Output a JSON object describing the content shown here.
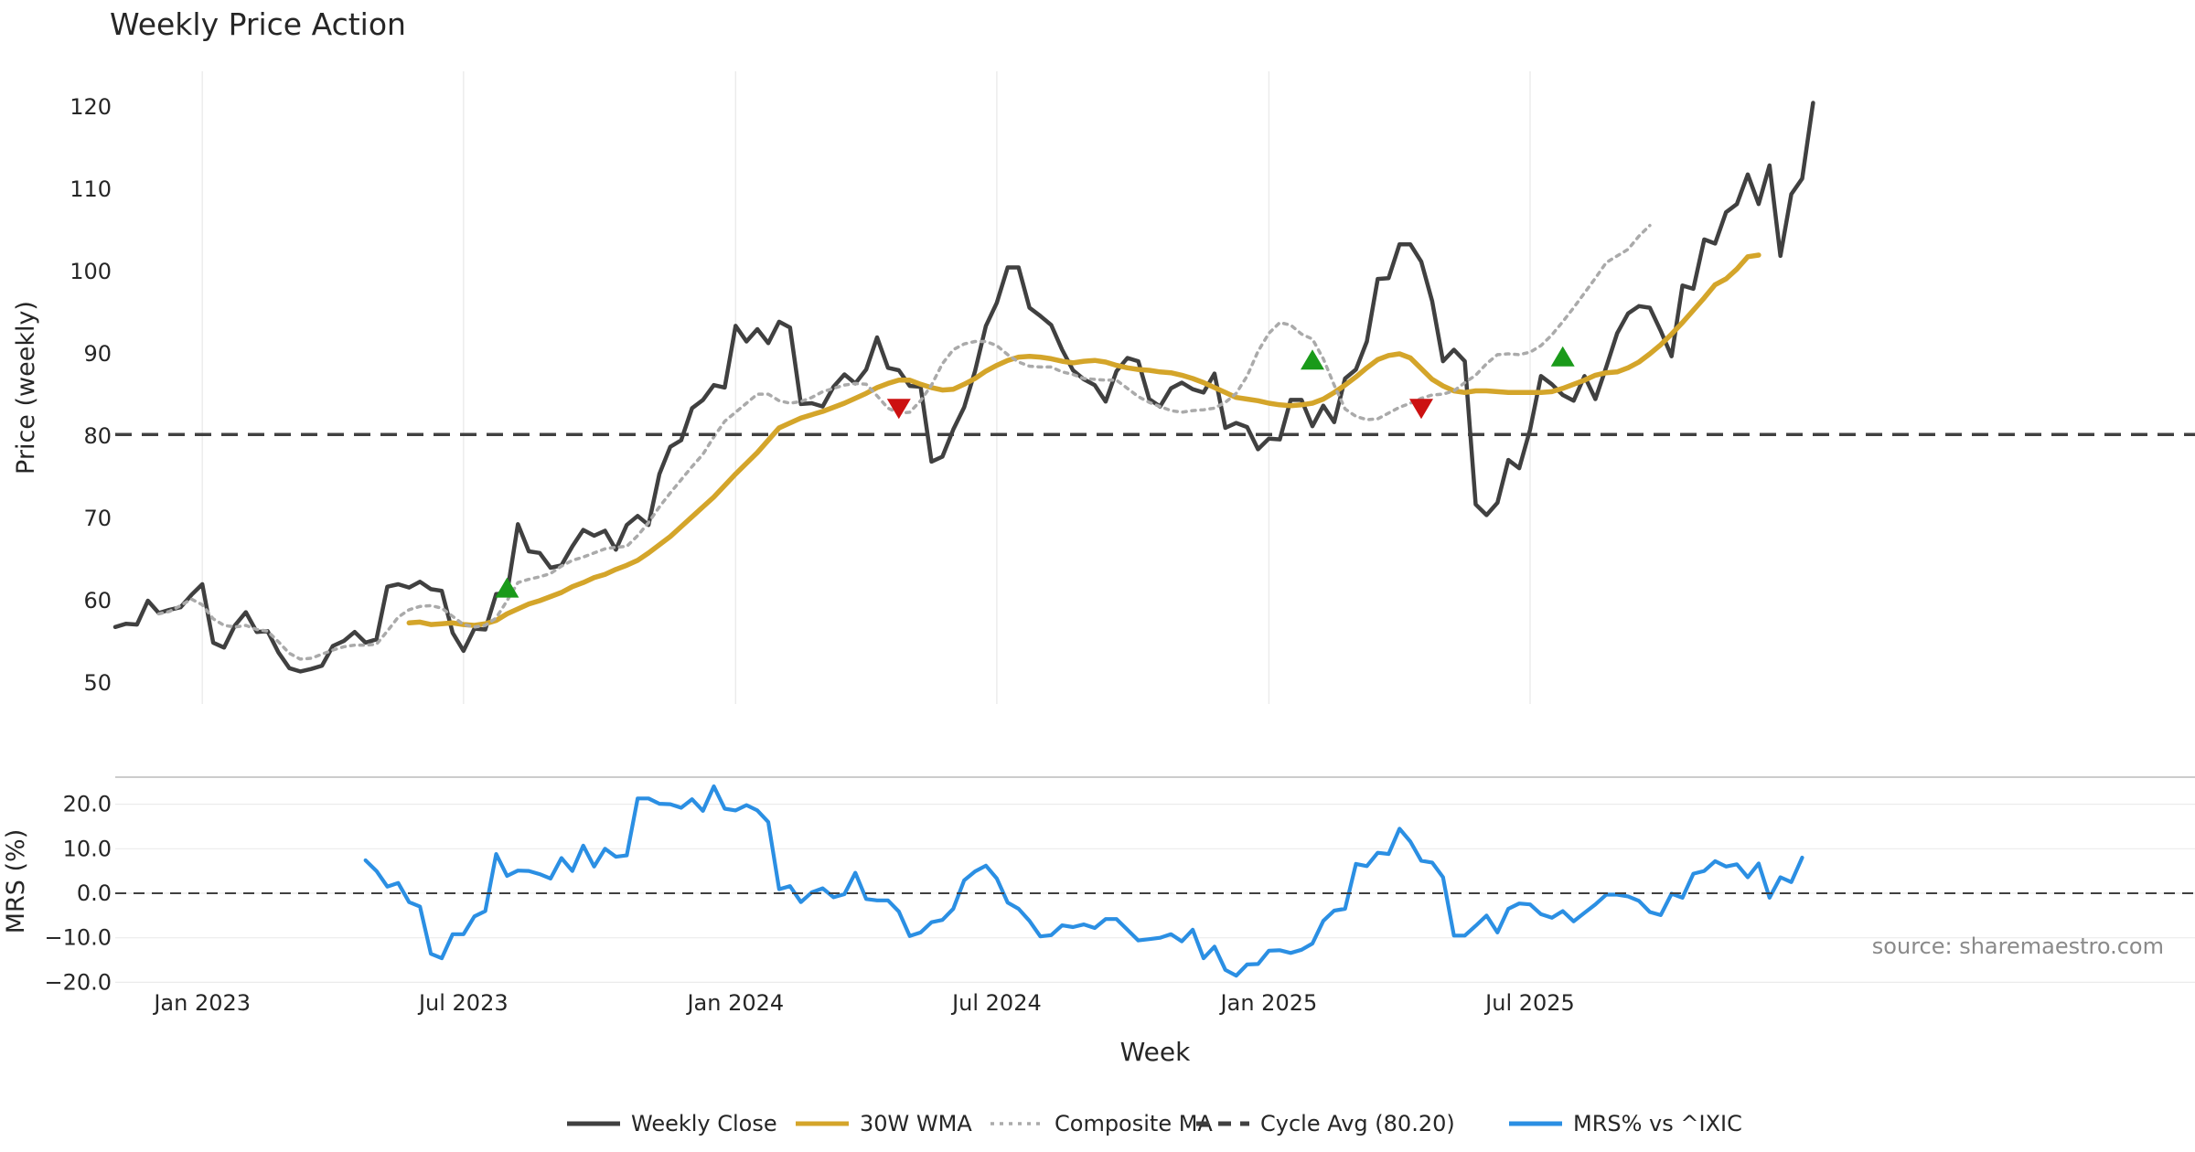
{
  "chart_data": [
    {
      "type": "line",
      "panel": "price",
      "title": "Weekly Price Action",
      "xlabel": "",
      "ylabel": "Price (weekly)",
      "ylim": [
        47,
        123
      ],
      "yticks": [
        "50",
        "60",
        "70",
        "80",
        "90",
        "100",
        "110",
        "120"
      ],
      "ytick_values": [
        50,
        60,
        70,
        80,
        90,
        100,
        110,
        120
      ],
      "x_range": [
        0,
        155
      ],
      "grid": "x",
      "series": [
        {
          "name": "Weekly Close",
          "color": "#404040",
          "style": "solid",
          "start_index": 0,
          "values": [
            56.8,
            57.2,
            57.1,
            60.0,
            58.5,
            58.9,
            59.2,
            60.7,
            62.0,
            54.9,
            54.3,
            57.0,
            58.6,
            56.2,
            56.3,
            53.7,
            51.8,
            51.4,
            51.7,
            52.1,
            54.5,
            55.1,
            56.2,
            54.9,
            55.3,
            61.7,
            62.0,
            61.6,
            62.3,
            61.4,
            61.2,
            56.1,
            53.9,
            56.6,
            56.5,
            60.8,
            60.9,
            69.3,
            66.0,
            65.8,
            64.0,
            64.3,
            66.6,
            68.6,
            67.9,
            68.5,
            66.2,
            69.2,
            70.3,
            69.2,
            75.4,
            78.7,
            79.5,
            83.4,
            84.4,
            86.2,
            85.9,
            93.4,
            91.5,
            93.0,
            91.3,
            93.9,
            93.2,
            83.9,
            84.0,
            83.6,
            86.0,
            87.5,
            86.4,
            88.1,
            92.0,
            88.3,
            88.0,
            86.1,
            86.0,
            76.9,
            77.5,
            80.8,
            83.5,
            87.9,
            93.4,
            96.2,
            100.5,
            100.5,
            95.6,
            94.6,
            93.5,
            90.5,
            88.0,
            86.9,
            86.2,
            84.2,
            87.9,
            89.5,
            89.1,
            84.5,
            83.6,
            85.8,
            86.5,
            85.7,
            85.3,
            87.6,
            81.0,
            81.6,
            81.1,
            78.4,
            79.7,
            79.6,
            84.4,
            84.4,
            81.2,
            83.7,
            81.7,
            87.0,
            88.1,
            91.5,
            99.1,
            99.2,
            103.3,
            103.3,
            101.2,
            96.4,
            89.1,
            90.5,
            89.1,
            71.7,
            70.4,
            71.9,
            77.1,
            76.1,
            80.8,
            87.3,
            86.3,
            85.0,
            84.3,
            87.3,
            84.5,
            88.4,
            92.5,
            94.9,
            95.8,
            95.6,
            92.8,
            89.7,
            98.3,
            97.9,
            103.9,
            103.4,
            107.2,
            108.2,
            111.8,
            108.2,
            112.9,
            101.9,
            109.4,
            111.3,
            120.5
          ]
        },
        {
          "name": "30W WMA",
          "color": "#d4a52a",
          "style": "solid",
          "start_index": 27,
          "values": [
            57.3,
            57.4,
            57.1,
            57.2,
            57.3,
            57.1,
            57.0,
            57.2,
            57.6,
            58.4,
            59.0,
            59.6,
            60.0,
            60.5,
            61.0,
            61.7,
            62.2,
            62.8,
            63.2,
            63.8,
            64.3,
            64.9,
            65.8,
            66.8,
            67.8,
            69.0,
            70.2,
            71.4,
            72.6,
            74.0,
            75.4,
            76.7,
            78.0,
            79.5,
            81.0,
            81.6,
            82.2,
            82.6,
            83.0,
            83.5,
            84.0,
            84.6,
            85.2,
            85.9,
            86.4,
            86.8,
            86.8,
            86.3,
            85.9,
            85.6,
            85.7,
            86.3,
            87.0,
            87.9,
            88.6,
            89.2,
            89.6,
            89.7,
            89.6,
            89.4,
            89.1,
            88.9,
            89.1,
            89.2,
            89.0,
            88.6,
            88.3,
            88.1,
            88.0,
            87.8,
            87.7,
            87.4,
            87.0,
            86.5,
            85.9,
            85.3,
            84.7,
            84.5,
            84.3,
            84.0,
            83.8,
            83.7,
            83.8,
            84.0,
            84.5,
            85.3,
            86.2,
            87.2,
            88.3,
            89.3,
            89.8,
            90.0,
            89.5,
            88.2,
            86.9,
            86.1,
            85.5,
            85.3,
            85.5,
            85.5,
            85.4,
            85.3,
            85.3,
            85.3,
            85.3,
            85.4,
            85.8,
            86.3,
            86.8,
            87.4,
            87.7,
            87.8,
            88.3,
            89.0,
            90.0,
            91.1,
            92.4,
            93.8,
            95.3,
            96.8,
            98.4,
            99.1,
            100.3,
            101.8,
            102.0
          ]
        },
        {
          "name": "Composite MA",
          "color": "#aaaaaa",
          "style": "dotted",
          "start_index": 4,
          "values": [
            58.4,
            58.7,
            59.4,
            60.2,
            59.5,
            57.8,
            57.0,
            56.8,
            57.0,
            56.5,
            56.3,
            55.0,
            53.6,
            52.9,
            53.0,
            53.5,
            54.0,
            54.4,
            54.6,
            54.6,
            54.7,
            56.3,
            58.0,
            58.9,
            59.3,
            59.4,
            59.1,
            58.1,
            57.1,
            56.8,
            57.0,
            57.9,
            60.0,
            62.2,
            62.6,
            62.9,
            63.3,
            64.2,
            64.9,
            65.3,
            65.8,
            66.3,
            66.5,
            66.6,
            67.9,
            69.5,
            71.4,
            73.1,
            74.7,
            76.3,
            77.8,
            79.9,
            81.8,
            82.9,
            84.0,
            85.1,
            85.1,
            84.3,
            84.0,
            84.2,
            84.7,
            85.4,
            85.8,
            86.2,
            86.4,
            86.3,
            84.9,
            83.4,
            82.8,
            82.9,
            84.3,
            86.2,
            88.8,
            90.5,
            91.2,
            91.5,
            91.5,
            91.0,
            89.9,
            89.0,
            88.5,
            88.4,
            88.4,
            87.8,
            87.5,
            87.0,
            86.9,
            86.8,
            86.8,
            85.8,
            84.8,
            84.1,
            83.6,
            83.1,
            82.9,
            83.1,
            83.2,
            83.4,
            84.1,
            85.2,
            87.3,
            90.3,
            92.5,
            93.8,
            93.5,
            92.4,
            91.8,
            89.4,
            86.2,
            83.3,
            82.4,
            82.0,
            82.1,
            82.8,
            83.5,
            84.0,
            84.6,
            85.0,
            85.1,
            85.5,
            86.5,
            87.4,
            88.8,
            89.9,
            90.0,
            89.9,
            90.2,
            91.0,
            92.3,
            93.9,
            95.6,
            97.4,
            99.2,
            101.1,
            101.9,
            102.7,
            104.3,
            105.6
          ]
        },
        {
          "name": "Cycle Avg (80.20)",
          "color": "#404040",
          "style": "dashed",
          "constant": 80.2
        }
      ],
      "markers": [
        {
          "kind": "buy",
          "index": 36,
          "value": 61.6,
          "color": "#1a9a1a"
        },
        {
          "kind": "sell",
          "index": 72,
          "value": 83.3,
          "color": "#cc1111"
        },
        {
          "kind": "buy",
          "index": 110,
          "value": 89.3,
          "color": "#1a9a1a"
        },
        {
          "kind": "sell",
          "index": 120,
          "value": 83.3,
          "color": "#cc1111"
        },
        {
          "kind": "buy",
          "index": 133,
          "value": 89.7,
          "color": "#1a9a1a"
        }
      ]
    },
    {
      "type": "line",
      "panel": "mrs",
      "title": "",
      "xlabel": "Week",
      "ylabel": "MRS (%)",
      "ylim": [
        -20.5,
        26
      ],
      "yticks": [
        "20.0",
        "10.0",
        "0.0",
        "−10.0",
        "−20.0"
      ],
      "ytick_values": [
        20,
        10,
        0,
        -10,
        -20
      ],
      "x_range": [
        0,
        155
      ],
      "xticks": [
        "Jan 2023",
        "Jul 2023",
        "Jan 2024",
        "Jul 2024",
        "Jan 2025",
        "Jul 2025"
      ],
      "xtick_values": [
        8,
        32,
        57,
        81,
        106,
        130
      ],
      "grid": "y",
      "series": [
        {
          "name": "MRS% vs ^IXIC",
          "color": "#2b8fe3",
          "style": "solid",
          "start_index": 23,
          "values": [
            7.4,
            5.0,
            1.5,
            2.3,
            -2.0,
            -3.0,
            -13.6,
            -14.6,
            -9.2,
            -9.2,
            -5.2,
            -4.0,
            8.8,
            3.9,
            5.1,
            5.0,
            4.3,
            3.3,
            7.9,
            5.0,
            10.7,
            6.0,
            10.0,
            8.2,
            8.5,
            21.3,
            21.3,
            20.1,
            20.0,
            19.2,
            21.1,
            18.5,
            24.0,
            19.0,
            18.6,
            19.8,
            18.6,
            16.0,
            0.9,
            1.6,
            -2.0,
            0.2,
            1.1,
            -0.9,
            -0.2,
            4.6,
            -1.3,
            -1.6,
            -1.6,
            -4.1,
            -9.6,
            -8.8,
            -6.5,
            -6.0,
            -3.5,
            2.9,
            4.9,
            6.2,
            3.3,
            -2.1,
            -3.5,
            -6.2,
            -9.7,
            -9.4,
            -7.2,
            -7.6,
            -7.0,
            -7.8,
            -5.8,
            -5.8,
            -8.2,
            -10.6,
            -10.3,
            -10.0,
            -9.2,
            -10.8,
            -8.2,
            -14.6,
            -12.0,
            -17.2,
            -18.5,
            -16.0,
            -15.9,
            -12.9,
            -12.8,
            -13.4,
            -12.7,
            -11.3,
            -6.2,
            -3.9,
            -3.5,
            6.6,
            6.1,
            9.1,
            8.8,
            14.5,
            11.6,
            7.3,
            6.9,
            3.6,
            -9.5,
            -9.5,
            -7.3,
            -5.0,
            -8.8,
            -3.5,
            -2.3,
            -2.5,
            -4.7,
            -5.5,
            -4.0,
            -6.3,
            -4.4,
            -2.5,
            -0.3,
            -0.3,
            -0.7,
            -1.7,
            -4.2,
            -4.9,
            -0.1,
            -1.0,
            4.4,
            5.0,
            7.2,
            6.0,
            6.5,
            3.6,
            6.7,
            -1.0,
            3.6,
            2.5,
            8.0
          ]
        },
        {
          "name": "zero line",
          "color": "#404040",
          "style": "dashed",
          "constant": 0
        }
      ]
    }
  ],
  "legend": {
    "placement": "bottom-center",
    "items": [
      {
        "label": "Weekly Close",
        "color": "#404040",
        "style": "solid"
      },
      {
        "label": "30W WMA",
        "color": "#d4a52a",
        "style": "solid"
      },
      {
        "label": "Composite MA",
        "color": "#aaaaaa",
        "style": "dotted"
      },
      {
        "label": "Cycle Avg (80.20)",
        "color": "#404040",
        "style": "dashed"
      },
      {
        "label": "MRS% vs ^IXIC",
        "color": "#2b8fe3",
        "style": "solid"
      }
    ]
  },
  "source_note": "source: sharemaestro.com"
}
